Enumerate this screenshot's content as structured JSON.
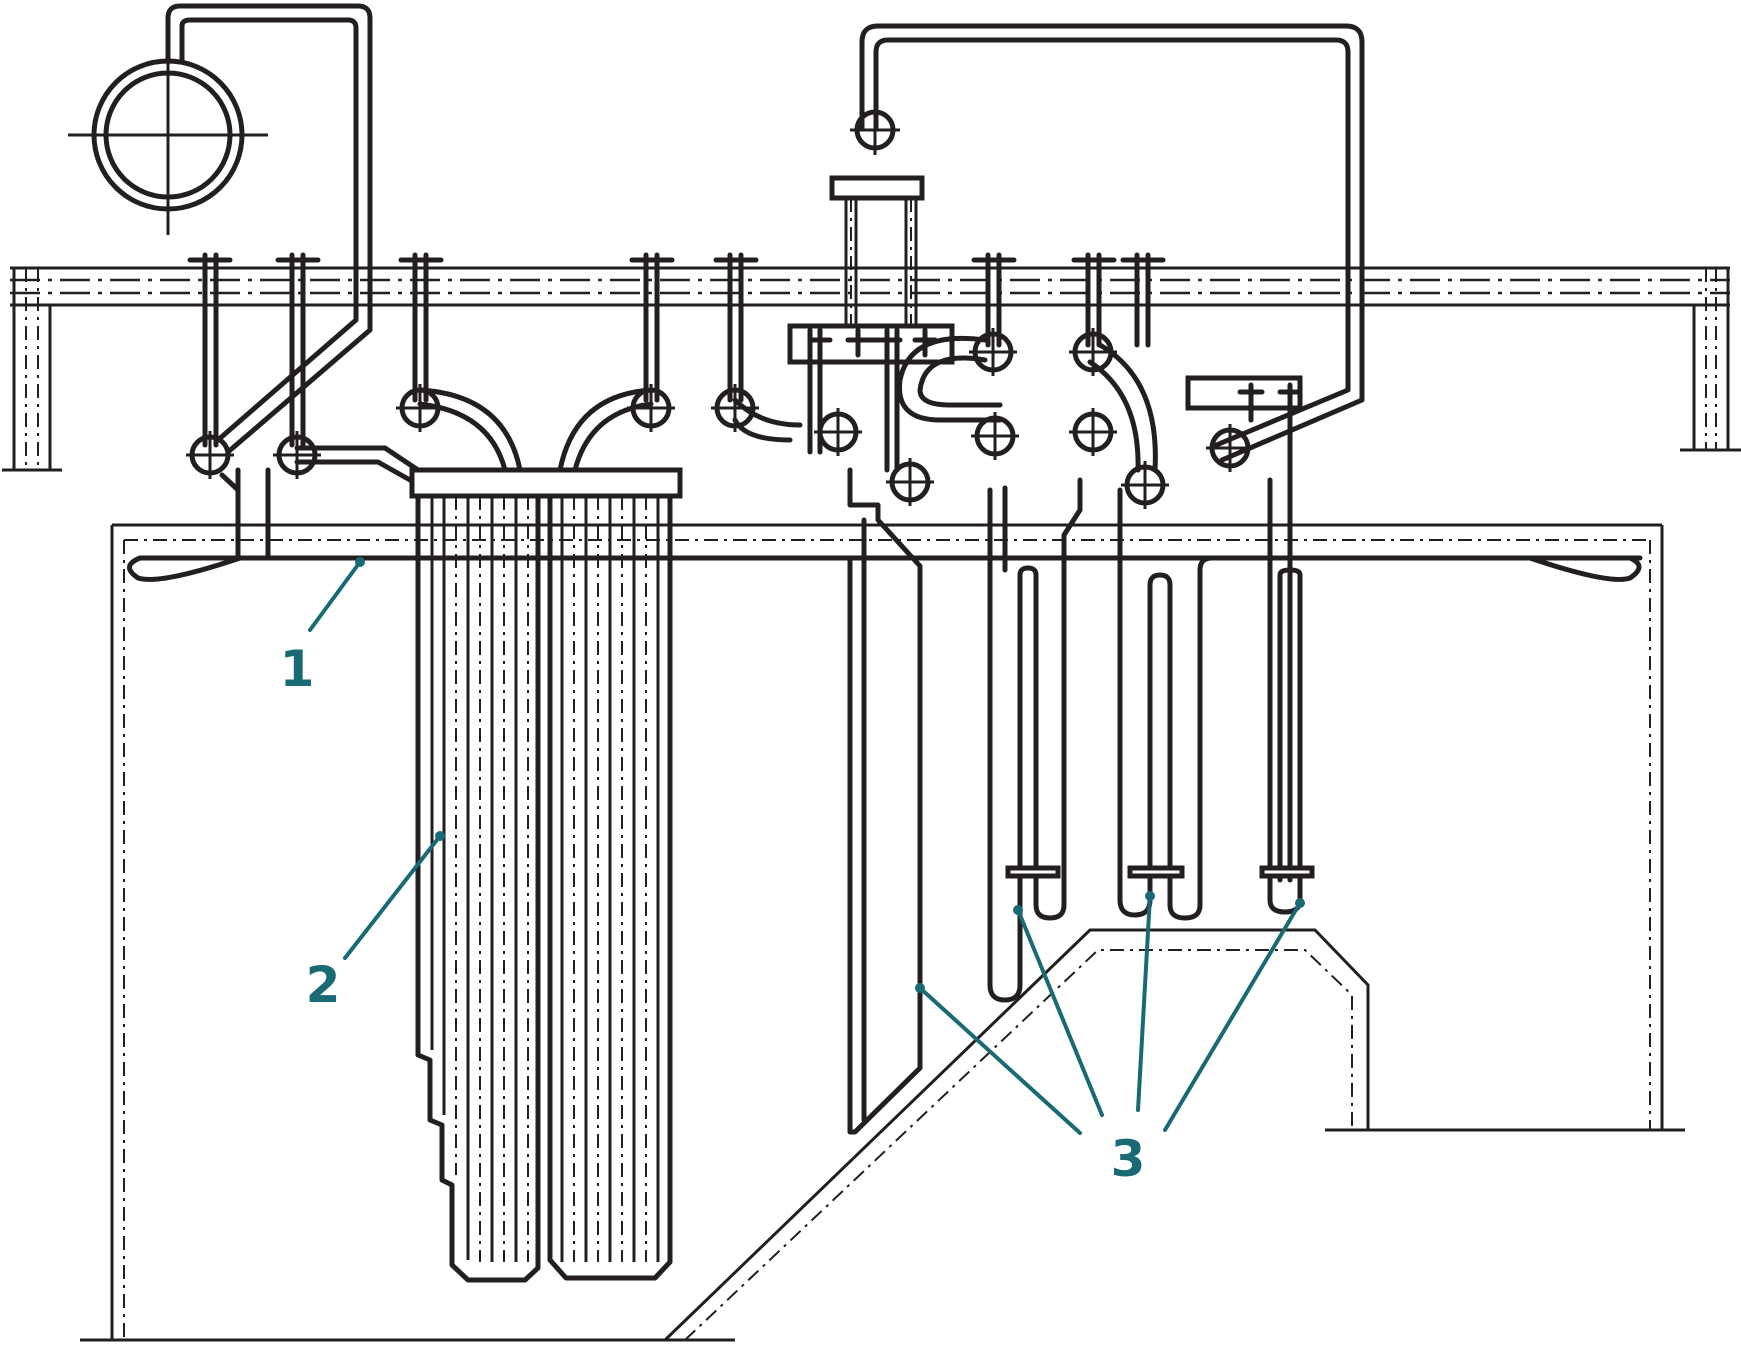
{
  "colors": {
    "line": "#231f20",
    "accent": "#1a6a76",
    "background": "#ffffff"
  },
  "callouts": [
    {
      "id": "1",
      "label": "1"
    },
    {
      "id": "2",
      "label": "2"
    },
    {
      "id": "3",
      "label": "3"
    }
  ]
}
